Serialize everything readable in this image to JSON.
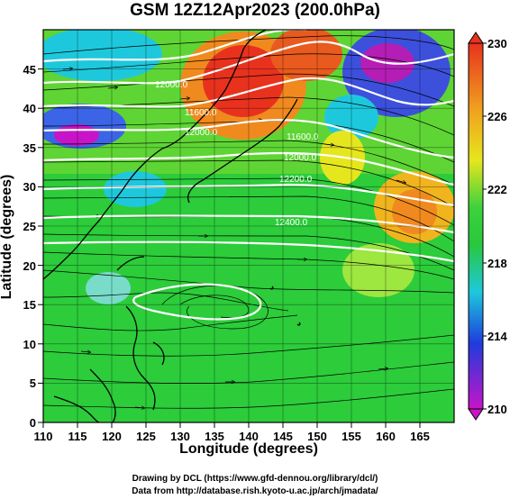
{
  "title": "GSM 12Z12Apr2023 (200.0hPa)",
  "xlabel": "Longitude (degrees)",
  "ylabel": "Latitude  (degrees)",
  "x_ticks": [
    "110",
    "115",
    "120",
    "125",
    "130",
    "135",
    "140",
    "145",
    "150",
    "155",
    "160",
    "165"
  ],
  "y_ticks": [
    "0",
    "5",
    "10",
    "15",
    "20",
    "25",
    "30",
    "35",
    "40",
    "45"
  ],
  "colorbar_ticks": [
    "230",
    "226",
    "222",
    "218",
    "214",
    "210"
  ],
  "contour_labels": [
    "12000.0",
    "11600.0",
    "12000.0",
    "11600.0",
    "12000.0",
    "12200.0",
    "12400.0"
  ],
  "credits": {
    "line1": "Drawing by DCL (https://www.gfd-dennou.org/library/dcl/)",
    "line2": "Data from http://database.rish.kyoto-u.ac.jp/arch/jmadata/"
  },
  "map_extent": {
    "lon": [
      110,
      170
    ],
    "lat": [
      0,
      50
    ]
  },
  "colorbar_range": [
    210,
    230
  ],
  "colors": {
    "warm_core": "#e8321e",
    "mid_green": "#28c83c",
    "low_magenta": "#c814c8",
    "low_blue": "#1e3cdc",
    "contour": "#ffffff",
    "coastline": "#000000"
  }
}
